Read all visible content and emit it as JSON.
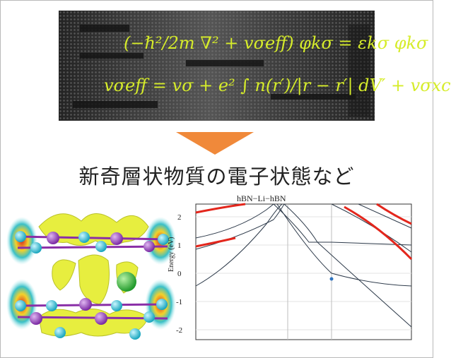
{
  "equation_line1": "(−ℏ²/2m ∇² + vσeff) φkσ = εkσ φkσ",
  "equation_line2": "vσeff = vσ + e² ∫ n(r′)/|r − r′| dV′ + vσxc",
  "caption": "新奇層状物質の電子状態など",
  "plot": {
    "title": "hBN−Li−hBN",
    "ylabel": "Energy (eV)",
    "yticks": [
      "2",
      "1",
      "0",
      "-1",
      "-2"
    ]
  },
  "colors": {
    "arrow": "#f0893a",
    "equation": "#d6ec2a",
    "band_highlight": "#e3261c",
    "band": "#2d3a4a",
    "isosurface": "#e7ee3f"
  }
}
